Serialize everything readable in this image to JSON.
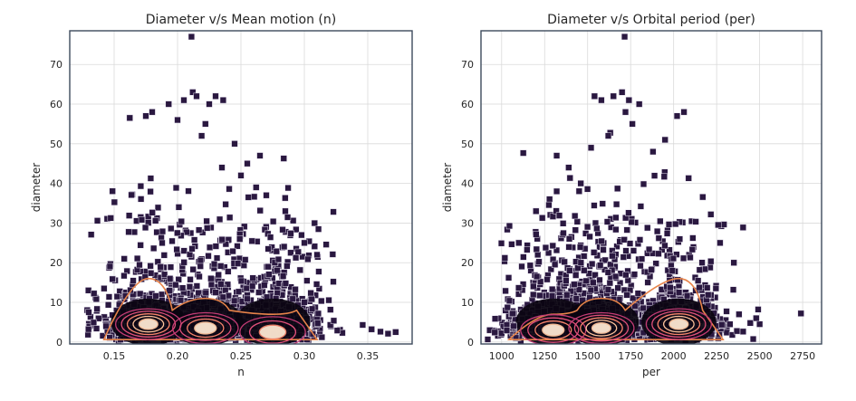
{
  "chart_data": [
    {
      "type": "scatter",
      "title": "Diameter v/s Mean motion (n)",
      "xlabel": "n",
      "ylabel": "diameter",
      "xlim": [
        0.115,
        0.385
      ],
      "ylim": [
        -0.5,
        78.5
      ],
      "xticks": [
        0.15,
        0.2,
        0.25,
        0.3,
        0.35
      ],
      "xtick_labels": [
        "0.15",
        "0.20",
        "0.25",
        "0.30",
        "0.35"
      ],
      "yticks": [
        0,
        10,
        20,
        30,
        40,
        50,
        60,
        70
      ],
      "ytick_labels": [
        "0",
        "10",
        "20",
        "30",
        "40",
        "50",
        "60",
        "70"
      ],
      "grid": true,
      "overlay": "kde density contours",
      "marker": "square",
      "point_color": "#2a1840",
      "outlier_points": [
        [
          0.211,
          77
        ],
        [
          0.13,
          7.5
        ],
        [
          0.353,
          3.2
        ],
        [
          0.36,
          2.6
        ],
        [
          0.366,
          2.1
        ],
        [
          0.372,
          2.5
        ],
        [
          0.346,
          4.3
        ],
        [
          0.33,
          2.3
        ],
        [
          0.326,
          2.9
        ],
        [
          0.193,
          60
        ],
        [
          0.205,
          61
        ],
        [
          0.212,
          63
        ],
        [
          0.215,
          62
        ],
        [
          0.225,
          60
        ],
        [
          0.23,
          62
        ],
        [
          0.236,
          61
        ],
        [
          0.2,
          56
        ],
        [
          0.222,
          55
        ],
        [
          0.219,
          52
        ],
        [
          0.18,
          58
        ],
        [
          0.175,
          57
        ],
        [
          0.245,
          50
        ],
        [
          0.265,
          47
        ],
        [
          0.255,
          45
        ],
        [
          0.25,
          42
        ],
        [
          0.262,
          39
        ],
        [
          0.27,
          37
        ],
        [
          0.285,
          33
        ],
        [
          0.3,
          25
        ],
        [
          0.31,
          22
        ],
        [
          0.235,
          44
        ]
      ],
      "density_modes": [
        {
          "x": 0.177,
          "y": 4.5,
          "peak": 1.0
        },
        {
          "x": 0.222,
          "y": 3.5,
          "peak": 0.8
        },
        {
          "x": 0.275,
          "y": 2.5,
          "peak": 0.45
        }
      ]
    },
    {
      "type": "scatter",
      "title": "Diameter v/s Orbital period (per)",
      "xlabel": "per",
      "ylabel": "diameter",
      "xlim": [
        880,
        2860
      ],
      "ylim": [
        -0.5,
        78.5
      ],
      "xticks": [
        1000,
        1250,
        1500,
        1750,
        2000,
        2250,
        2500,
        2750
      ],
      "xtick_labels": [
        "1000",
        "1250",
        "1500",
        "1750",
        "2000",
        "2250",
        "2500",
        "2750"
      ],
      "yticks": [
        0,
        10,
        20,
        30,
        40,
        50,
        60,
        70
      ],
      "ytick_labels": [
        "0",
        "10",
        "20",
        "30",
        "40",
        "50",
        "60",
        "70"
      ],
      "grid": true,
      "overlay": "kde density contours",
      "marker": "square",
      "point_color": "#2a1840",
      "outlier_points": [
        [
          1715,
          77
        ],
        [
          2740,
          7.2
        ],
        [
          980,
          2.7
        ],
        [
          1000,
          2.2
        ],
        [
          960,
          2.4
        ],
        [
          1030,
          2.9
        ],
        [
          1070,
          4.0
        ],
        [
          2500,
          4.5
        ],
        [
          2480,
          6.0
        ],
        [
          1650,
          62
        ],
        [
          1700,
          63
        ],
        [
          1740,
          61
        ],
        [
          1800,
          60
        ],
        [
          1580,
          61
        ],
        [
          1540,
          62
        ],
        [
          1720,
          58
        ],
        [
          1760,
          55
        ],
        [
          1620,
          52
        ],
        [
          2060,
          58
        ],
        [
          2020,
          57
        ],
        [
          1950,
          51
        ],
        [
          1520,
          49
        ],
        [
          1320,
          47
        ],
        [
          1390,
          44
        ],
        [
          1460,
          40
        ],
        [
          1320,
          38
        ],
        [
          1200,
          33
        ],
        [
          1100,
          25
        ],
        [
          2270,
          25
        ],
        [
          2350,
          20
        ],
        [
          1880,
          48
        ]
      ],
      "density_modes": [
        {
          "x": 1300,
          "y": 3,
          "peak": 0.55
        },
        {
          "x": 1580,
          "y": 3.5,
          "peak": 0.85
        },
        {
          "x": 2030,
          "y": 4.5,
          "peak": 1.0
        }
      ]
    }
  ]
}
